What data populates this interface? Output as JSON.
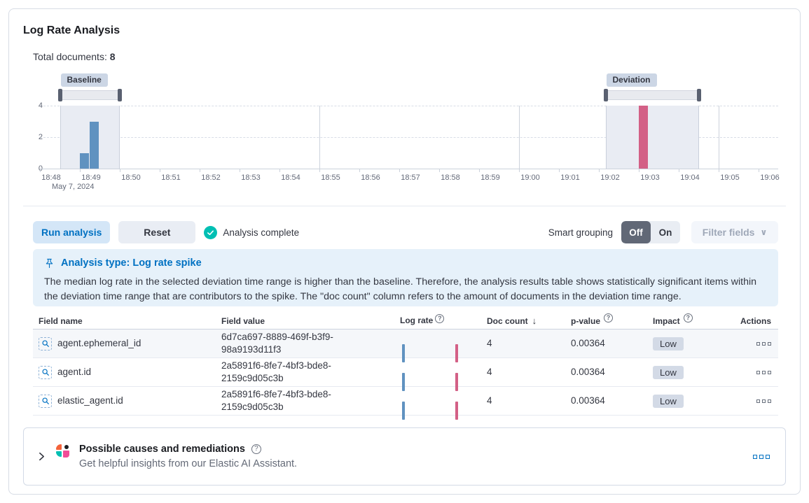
{
  "header": {
    "title": "Log Rate Analysis",
    "total_documents_label": "Total documents:",
    "total_documents_value": "8"
  },
  "colors": {
    "primary": "#0071c2",
    "baseline_bar": "#6092c0",
    "deviation_bar": "#d36086",
    "success": "#00bfb3",
    "impact_badge_bg": "#d3dae6"
  },
  "chart_data": {
    "type": "bar",
    "x_date_label": "May 7, 2024",
    "x_ticks": [
      "18:48",
      "18:49",
      "18:50",
      "18:51",
      "18:52",
      "18:53",
      "18:54",
      "18:55",
      "18:56",
      "18:57",
      "18:58",
      "18:59",
      "19:00",
      "19:01",
      "19:02",
      "19:03",
      "19:04",
      "19:05",
      "19:06"
    ],
    "y_ticks": [
      "4",
      "2",
      "0"
    ],
    "ylim": [
      0,
      4
    ],
    "vertical_gridlines": [
      "18:55",
      "19:00",
      "19:05"
    ],
    "series": [
      {
        "name": "Baseline",
        "color_key": "baseline_bar",
        "points": [
          {
            "time": "18:49:00",
            "count": 1
          },
          {
            "time": "18:49:15",
            "count": 3
          }
        ]
      },
      {
        "name": "Deviation",
        "color_key": "deviation_bar",
        "points": [
          {
            "time": "19:03:00",
            "count": 4
          }
        ]
      }
    ],
    "brushes": [
      {
        "label": "Baseline",
        "start": "18:48:30",
        "end": "18:50:00"
      },
      {
        "label": "Deviation",
        "start": "19:02:10",
        "end": "19:04:30"
      }
    ]
  },
  "toolbar": {
    "run_analysis": "Run analysis",
    "reset": "Reset",
    "status": "Analysis complete",
    "smart_grouping_label": "Smart grouping",
    "off": "Off",
    "on": "On",
    "filter_fields": "Filter fields"
  },
  "callout": {
    "title": "Analysis type: Log rate spike",
    "body": "The median log rate in the selected deviation time range is higher than the baseline. Therefore, the analysis results table shows statistically significant items within the deviation time range that are contributors to the spike. The \"doc count\" column refers to the amount of documents in the deviation time range."
  },
  "table": {
    "columns": [
      {
        "label": "Field name"
      },
      {
        "label": "Field value"
      },
      {
        "label": "Log rate",
        "info": true
      },
      {
        "label": "Doc count",
        "sorted": "desc"
      },
      {
        "label": "p-value",
        "info": true
      },
      {
        "label": "Impact",
        "info": true
      },
      {
        "label": "Actions"
      }
    ],
    "rows": [
      {
        "field_name": "agent.ephemeral_id",
        "field_value": "6d7ca697-8889-469f-b3f9-98a9193d11f3",
        "doc_count": "4",
        "p_value": "0.00364",
        "impact": "Low"
      },
      {
        "field_name": "agent.id",
        "field_value": "2a5891f6-8fe7-4bf3-bde8-2159c9d05c3b",
        "doc_count": "4",
        "p_value": "0.00364",
        "impact": "Low"
      },
      {
        "field_name": "elastic_agent.id",
        "field_value": "2a5891f6-8fe7-4bf3-bde8-2159c9d05c3b",
        "doc_count": "4",
        "p_value": "0.00364",
        "impact": "Low"
      }
    ]
  },
  "footer": {
    "title": "Possible causes and remediations",
    "subtitle": "Get helpful insights from our Elastic AI Assistant."
  },
  "icons": {
    "sort_desc": "↓",
    "chevron_down": "∨",
    "question": "?"
  }
}
